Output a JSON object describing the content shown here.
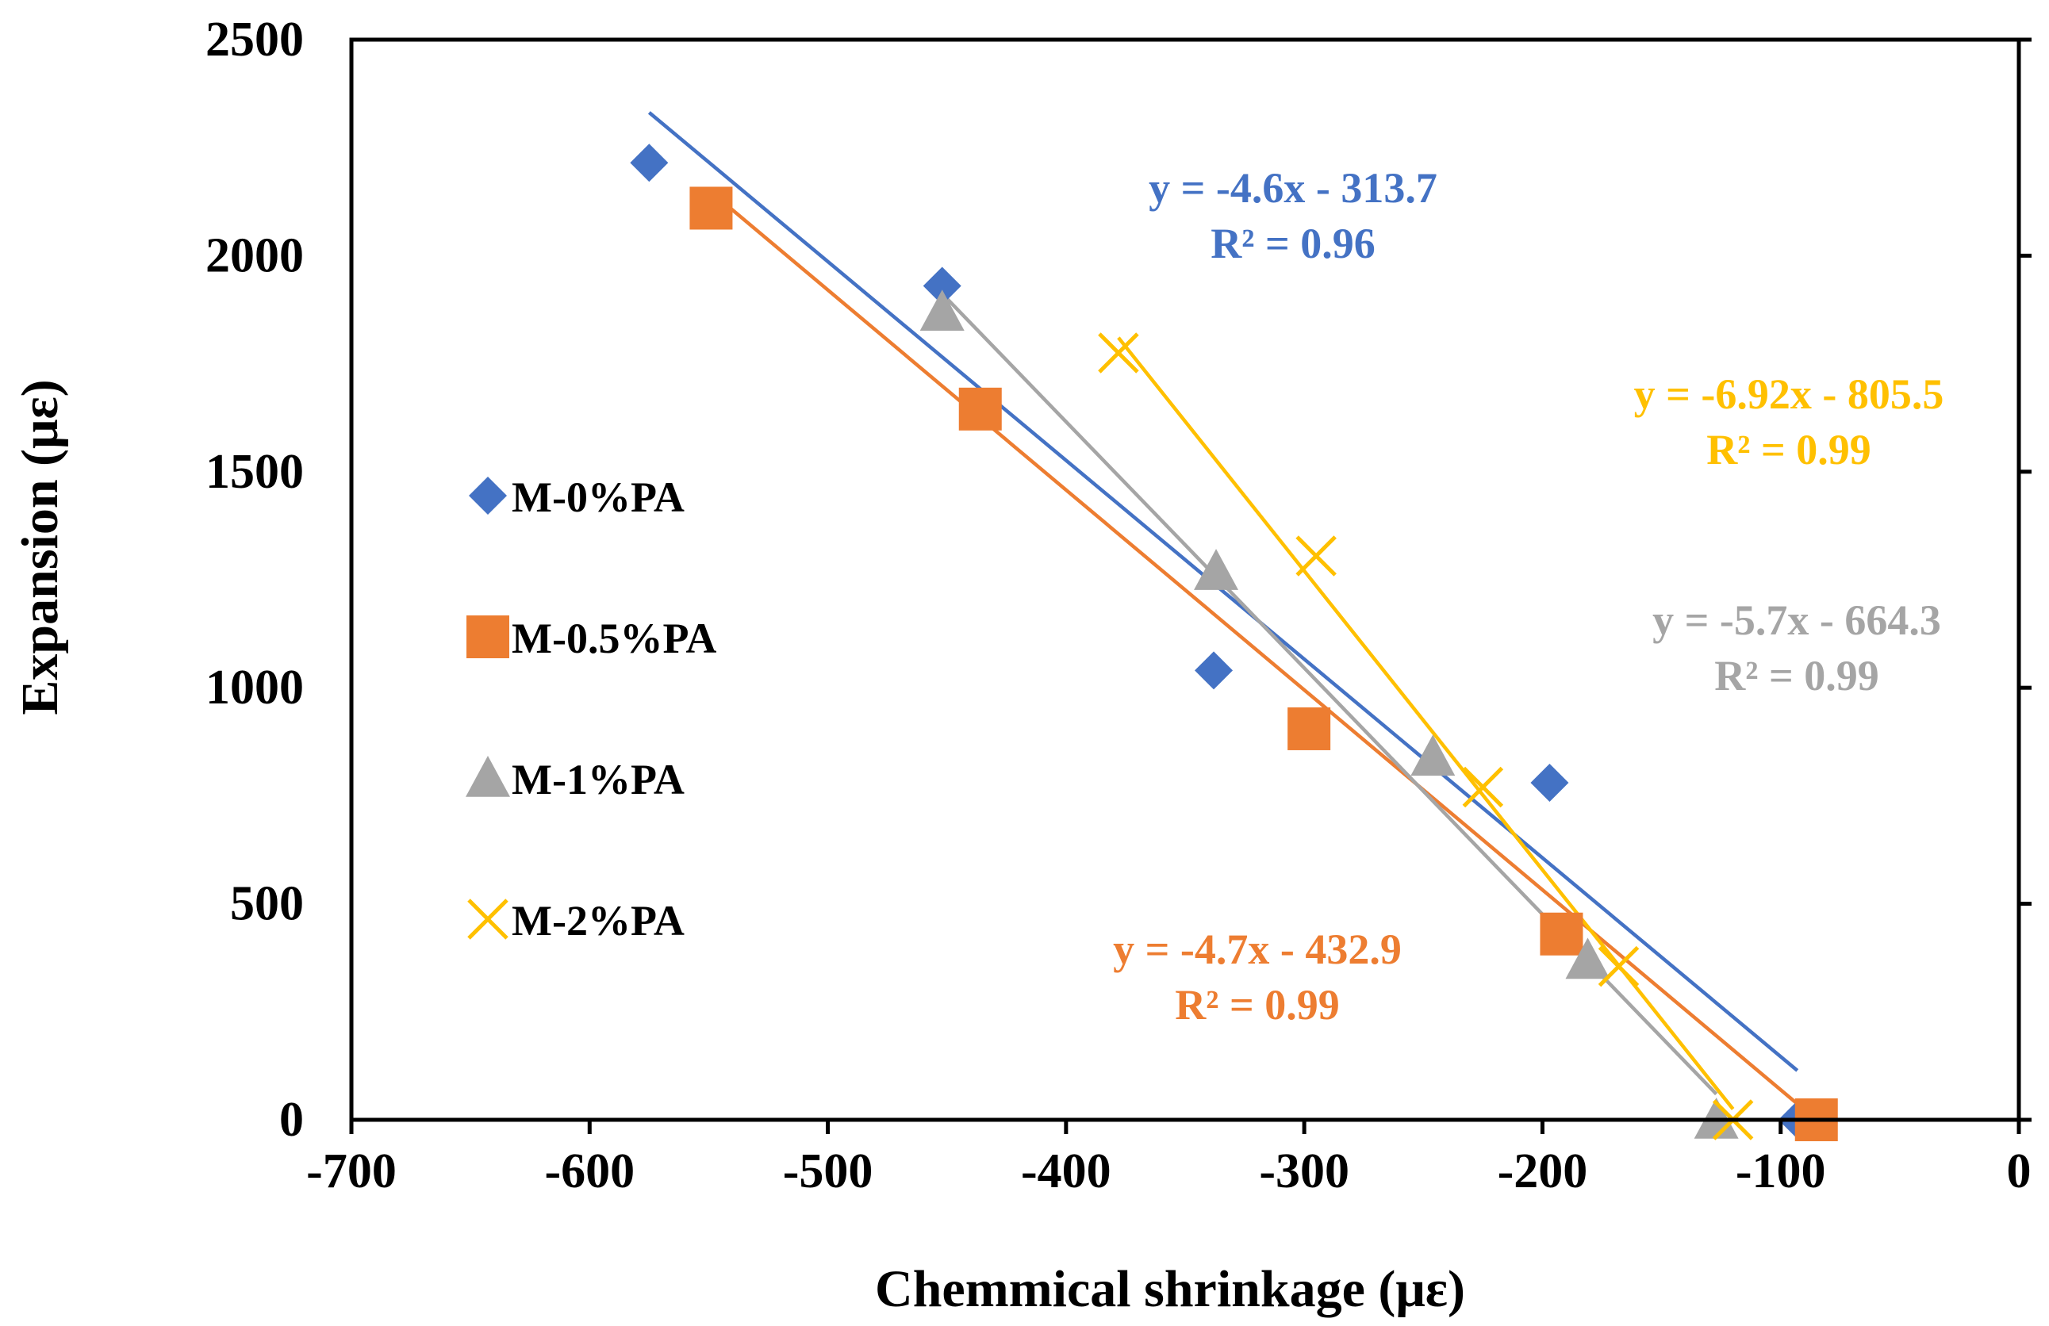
{
  "chart_data": {
    "type": "scatter",
    "xlabel": "Chemmical shrinkage (με)",
    "ylabel": "Expansion (με)",
    "xlim": [
      -700,
      0
    ],
    "ylim": [
      0,
      2500
    ],
    "xticks": [
      -700,
      -600,
      -500,
      -400,
      -300,
      -200,
      -100,
      0
    ],
    "yticks": [
      0,
      500,
      1000,
      1500,
      2000,
      2500
    ],
    "xtick_labels": [
      "-700",
      "-600",
      "-500",
      "-400",
      "-300",
      "-200",
      "-100",
      "0"
    ],
    "ytick_labels": [
      "0",
      "500",
      "1000",
      "1500",
      "2000",
      "2500"
    ],
    "legend_position": "left",
    "series": [
      {
        "name": "M-0%PA",
        "color": "#4472C4",
        "marker": "diamond",
        "x": [
          -575,
          -452,
          -338,
          -197,
          -93
        ],
        "y": [
          2215,
          1930,
          1040,
          780,
          0
        ],
        "trendline": {
          "x": [
            -575,
            -93
          ],
          "slope": -4.6,
          "intercept": -313.7
        },
        "equation": "y = -4.6x - 313.7",
        "r2": "R² = 0.96"
      },
      {
        "name": "M-0.5%PA",
        "color": "#ED7D31",
        "marker": "square",
        "x": [
          -549,
          -436,
          -298,
          -192,
          -85
        ],
        "y": [
          2110,
          1645,
          905,
          430,
          0
        ],
        "trendline": {
          "x": [
            -549,
            -85
          ],
          "slope": -4.7,
          "intercept": -432.9
        },
        "equation": "y = -4.7x - 432.9",
        "r2": "R² = 0.99"
      },
      {
        "name": "M-1%PA",
        "color": "#A5A5A5",
        "marker": "triangle",
        "x": [
          -452,
          -337,
          -246,
          -181,
          -127
        ],
        "y": [
          1870,
          1270,
          840,
          370,
          0
        ],
        "trendline": {
          "x": [
            -452,
            -127
          ],
          "slope": -5.7,
          "intercept": -664.3
        },
        "equation": "y = -5.7x - 664.3",
        "r2": "R² = 0.99"
      },
      {
        "name": "M-2%PA",
        "color": "#FFC000",
        "marker": "x",
        "x": [
          -378,
          -295,
          -225,
          -168,
          -120
        ],
        "y": [
          1775,
          1305,
          770,
          355,
          0
        ],
        "trendline": {
          "x": [
            -378,
            -120
          ],
          "slope": -6.92,
          "intercept": -805.5
        },
        "equation": "y = -6.92x - 805.5",
        "r2": "R² = 0.99"
      }
    ]
  }
}
